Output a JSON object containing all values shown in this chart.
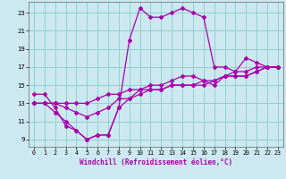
{
  "xlabel": "Windchill (Refroidissement éolien,°C)",
  "bg_color": "#cce8f0",
  "grid_color": "#88cccc",
  "line_color": "#aa00aa",
  "x_ticks": [
    0,
    1,
    2,
    3,
    4,
    5,
    6,
    7,
    8,
    9,
    10,
    11,
    12,
    13,
    14,
    15,
    16,
    17,
    18,
    19,
    20,
    21,
    22,
    23
  ],
  "y_ticks": [
    9,
    11,
    13,
    15,
    17,
    19,
    21,
    23
  ],
  "ylim": [
    8.2,
    24.2
  ],
  "xlim": [
    -0.5,
    23.5
  ],
  "series": [
    {
      "x": [
        0,
        1,
        2,
        3,
        4,
        5,
        6,
        7,
        8,
        9,
        10,
        11,
        12,
        13,
        14,
        15,
        16,
        17,
        18,
        19,
        20,
        21,
        22,
        23
      ],
      "y": [
        14,
        14,
        12.5,
        10.5,
        10,
        9,
        9.5,
        9.5,
        12.5,
        20,
        23.5,
        22.5,
        22.5,
        23,
        23.5,
        23,
        22.5,
        17,
        17,
        16.5,
        18,
        17.5,
        17,
        17
      ]
    },
    {
      "x": [
        0,
        1,
        2,
        3,
        4,
        5,
        6,
        7,
        8,
        9,
        10,
        11,
        12,
        13,
        14,
        15,
        16,
        17,
        18,
        19,
        20,
        21,
        22,
        23
      ],
      "y": [
        13,
        13,
        13,
        13,
        13,
        13,
        13.5,
        14,
        14,
        14.5,
        14.5,
        14.5,
        14.5,
        15,
        15,
        15,
        15.5,
        15.5,
        16,
        16,
        16,
        16.5,
        17,
        17
      ]
    },
    {
      "x": [
        0,
        1,
        2,
        3,
        4,
        5,
        6,
        7,
        8,
        9,
        10,
        11,
        12,
        13,
        14,
        15,
        16,
        17,
        18,
        19,
        20,
        21,
        22,
        23
      ],
      "y": [
        13,
        13,
        13,
        12.5,
        12,
        11.5,
        12,
        12.5,
        13.5,
        13.5,
        14,
        14.5,
        14.5,
        15,
        15,
        15,
        15,
        15.5,
        16,
        16,
        16,
        16.5,
        17,
        17
      ]
    },
    {
      "x": [
        0,
        1,
        2,
        3,
        4,
        5,
        6,
        7,
        8,
        9,
        10,
        11,
        12,
        13,
        14,
        15,
        16,
        17,
        18,
        19,
        20,
        21,
        22,
        23
      ],
      "y": [
        13,
        13,
        12,
        11,
        10,
        9,
        9.5,
        9.5,
        12.5,
        13.5,
        14.5,
        15,
        15,
        15.5,
        16,
        16,
        15.5,
        15,
        16,
        16.5,
        16.5,
        17,
        17,
        17
      ]
    }
  ]
}
